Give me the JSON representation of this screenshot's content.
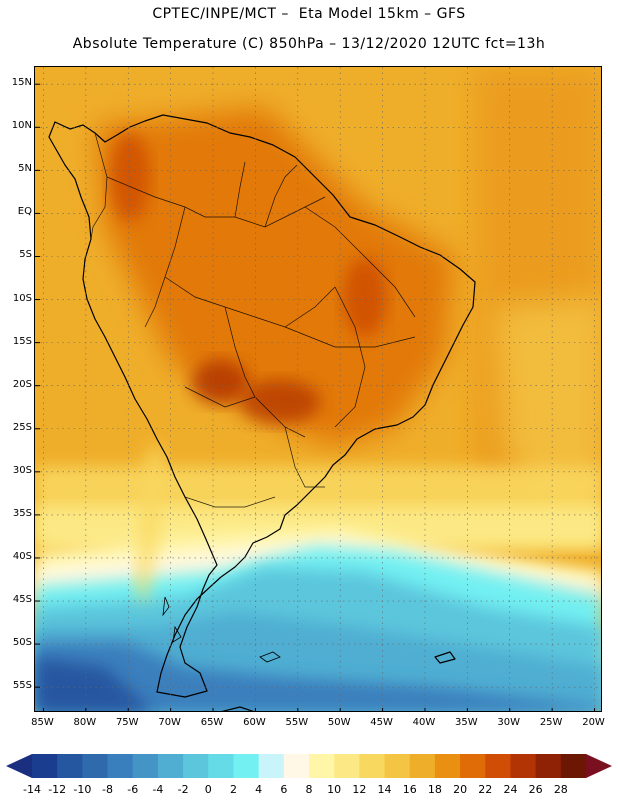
{
  "header": {
    "title_line1": "CPTEC/INPE/MCT –  Eta Model 15km – GFS",
    "title_line2": "Absolute Temperature (C) 850hPa – 13/12/2020 12UTC fct=13h"
  },
  "map": {
    "lon_range": [
      -86,
      -19
    ],
    "lat_range": [
      17,
      -58
    ],
    "lat_ticks": [
      "15N",
      "10N",
      "5N",
      "EQ",
      "5S",
      "10S",
      "15S",
      "20S",
      "25S",
      "30S",
      "35S",
      "40S",
      "45S",
      "50S",
      "55S"
    ],
    "lat_values": [
      15,
      10,
      5,
      0,
      -5,
      -10,
      -15,
      -20,
      -25,
      -30,
      -35,
      -40,
      -45,
      -50,
      -55
    ],
    "lon_ticks": [
      "85W",
      "80W",
      "75W",
      "70W",
      "65W",
      "60W",
      "55W",
      "50W",
      "45W",
      "40W",
      "35W",
      "30W",
      "25W",
      "20W"
    ],
    "lon_values": [
      -85,
      -80,
      -75,
      -70,
      -65,
      -60,
      -55,
      -50,
      -45,
      -40,
      -35,
      -30,
      -25,
      -20
    ]
  },
  "colorbar": {
    "labels": [
      "-14",
      "-12",
      "-10",
      "-8",
      "-6",
      "-4",
      "-2",
      "0",
      "2",
      "4",
      "6",
      "8",
      "10",
      "12",
      "14",
      "16",
      "18",
      "20",
      "22",
      "24",
      "26",
      "28"
    ],
    "colors": [
      "#1a3d8f",
      "#2556a0",
      "#2f6aad",
      "#3a7fbd",
      "#4495c6",
      "#4faed2",
      "#5bc6dc",
      "#66dbe8",
      "#72f0f2",
      "#c9f4fa",
      "#fff8e6",
      "#fff6a8",
      "#fce985",
      "#f9d860",
      "#f4c444",
      "#efae2a",
      "#e98f12",
      "#df6c06",
      "#cf4d04",
      "#b23404",
      "#8f2104",
      "#6c1604"
    ],
    "left_arrow_color": "#1a2f80",
    "right_arrow_color": "#7a0f20"
  }
}
